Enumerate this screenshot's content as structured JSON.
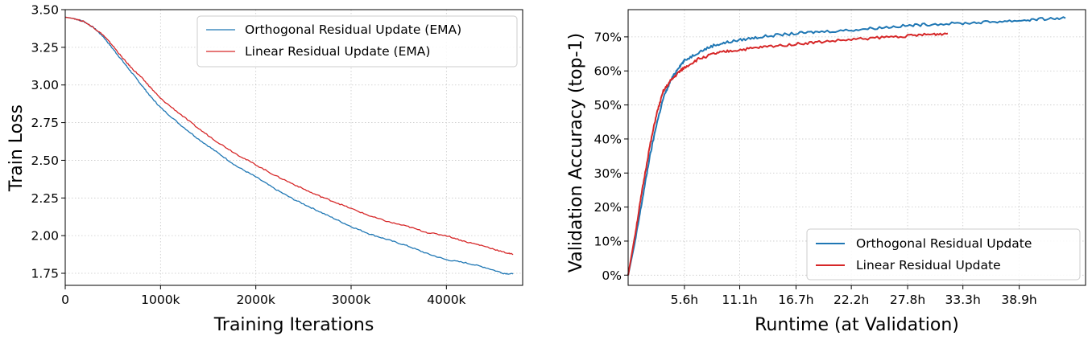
{
  "chart_data": [
    {
      "type": "line",
      "xlabel": "Training Iterations",
      "ylabel": "Train Loss",
      "xlim": [
        0,
        4800000
      ],
      "ylim": [
        1.67,
        3.5
      ],
      "xticks": [
        0,
        1000000,
        2000000,
        3000000,
        4000000
      ],
      "xtick_labels": [
        "0",
        "1000k",
        "2000k",
        "3000k",
        "4000k"
      ],
      "yticks": [
        1.75,
        2.0,
        2.25,
        2.5,
        2.75,
        3.0,
        3.25,
        3.5
      ],
      "ytick_labels": [
        "1.75",
        "2.00",
        "2.25",
        "2.50",
        "2.75",
        "3.00",
        "3.25",
        "3.50"
      ],
      "grid": true,
      "legend_position": "top-right",
      "series": [
        {
          "name": "Orthogonal Residual Update (EMA)",
          "color": "#1f77b4",
          "x": [
            0,
            100000,
            200000,
            300000,
            400000,
            500000,
            600000,
            700000,
            800000,
            900000,
            1000000,
            1200000,
            1400000,
            1600000,
            1800000,
            2000000,
            2200000,
            2400000,
            2600000,
            2800000,
            3000000,
            3200000,
            3400000,
            3600000,
            3800000,
            4000000,
            4200000,
            4400000,
            4600000,
            4700000
          ],
          "y": [
            3.45,
            3.44,
            3.42,
            3.38,
            3.32,
            3.24,
            3.16,
            3.08,
            3.0,
            2.92,
            2.85,
            2.74,
            2.64,
            2.55,
            2.46,
            2.39,
            2.31,
            2.24,
            2.18,
            2.12,
            2.06,
            2.01,
            1.97,
            1.93,
            1.88,
            1.84,
            1.82,
            1.79,
            1.75,
            1.745
          ]
        },
        {
          "name": "Linear Residual Update (EMA)",
          "color": "#d62728",
          "x": [
            0,
            100000,
            200000,
            300000,
            400000,
            500000,
            600000,
            700000,
            800000,
            900000,
            1000000,
            1200000,
            1400000,
            1600000,
            1800000,
            2000000,
            2200000,
            2400000,
            2600000,
            2800000,
            3000000,
            3200000,
            3400000,
            3600000,
            3800000,
            4000000,
            4200000,
            4400000,
            4600000,
            4700000
          ],
          "y": [
            3.45,
            3.44,
            3.42,
            3.38,
            3.33,
            3.26,
            3.18,
            3.11,
            3.05,
            2.98,
            2.91,
            2.81,
            2.71,
            2.62,
            2.54,
            2.47,
            2.4,
            2.34,
            2.28,
            2.23,
            2.18,
            2.13,
            2.09,
            2.06,
            2.02,
            2.0,
            1.96,
            1.93,
            1.89,
            1.875
          ]
        }
      ]
    },
    {
      "type": "line",
      "xlabel": "Runtime (at Validation)",
      "ylabel": "Validation Accuracy (top-1)",
      "xlim": [
        0,
        45.5
      ],
      "ylim": [
        -0.03,
        0.78
      ],
      "xticks": [
        5.6,
        11.1,
        16.7,
        22.2,
        27.8,
        33.3,
        38.9
      ],
      "xtick_labels": [
        "5.6h",
        "11.1h",
        "16.7h",
        "22.2h",
        "27.8h",
        "33.3h",
        "38.9h"
      ],
      "yticks": [
        0,
        0.1,
        0.2,
        0.3,
        0.4,
        0.5,
        0.6,
        0.7
      ],
      "ytick_labels": [
        "0%",
        "10%",
        "20%",
        "30%",
        "40%",
        "50%",
        "60%",
        "70%"
      ],
      "grid": true,
      "legend_position": "bottom-right",
      "series": [
        {
          "name": "Orthogonal Residual Update",
          "color": "#1f77b4",
          "x": [
            0,
            0.7,
            1.4,
            2.1,
            2.8,
            3.5,
            4.2,
            5.0,
            5.6,
            7.0,
            8.5,
            10.0,
            12.0,
            14.0,
            16.7,
            19.0,
            22.2,
            25.0,
            27.8,
            30.0,
            33.3,
            36.0,
            38.9,
            41.0,
            43.5
          ],
          "y": [
            0.0,
            0.1,
            0.22,
            0.34,
            0.44,
            0.52,
            0.57,
            0.61,
            0.63,
            0.655,
            0.675,
            0.685,
            0.695,
            0.703,
            0.71,
            0.715,
            0.72,
            0.727,
            0.733,
            0.737,
            0.74,
            0.744,
            0.748,
            0.752,
            0.755
          ]
        },
        {
          "name": "Linear Residual Update",
          "color": "#d62728",
          "x": [
            0,
            0.7,
            1.4,
            2.1,
            2.8,
            3.5,
            4.2,
            5.0,
            5.6,
            7.0,
            8.5,
            10.0,
            12.0,
            14.0,
            16.7,
            19.0,
            22.2,
            25.0,
            27.8,
            30.0,
            31.8
          ],
          "y": [
            0.0,
            0.12,
            0.25,
            0.37,
            0.47,
            0.54,
            0.57,
            0.595,
            0.61,
            0.635,
            0.65,
            0.658,
            0.665,
            0.672,
            0.679,
            0.685,
            0.692,
            0.698,
            0.703,
            0.707,
            0.71
          ]
        }
      ]
    }
  ]
}
